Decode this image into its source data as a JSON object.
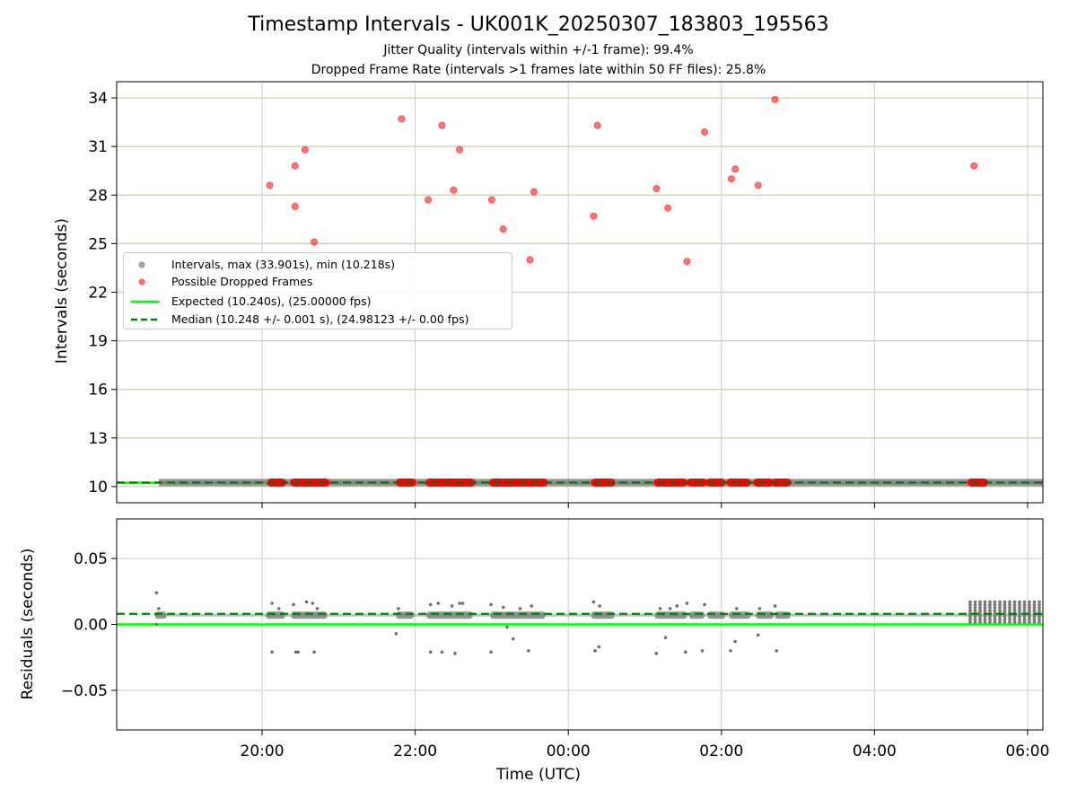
{
  "title": "Timestamp Intervals - UK001K_20250307_183803_195563",
  "subtitle_1": "Jitter Quality (intervals within +/-1 frame): 99.4%",
  "subtitle_2": "Dropped Frame Rate (intervals >1 frames late within 50 FF files): 25.8%",
  "colors": {
    "intervals": "#808080",
    "dropped": "#ff0000",
    "expected": "#00ff00",
    "median": "#008000",
    "hgrid_top": "#d8c8a0",
    "grid": "#cccccc"
  },
  "chart_data": [
    {
      "type": "scatter",
      "panel": "top",
      "ylabel": "Intervals (seconds)",
      "ylim": [
        9.0,
        35.0
      ],
      "yticks": [
        10,
        13,
        16,
        19,
        22,
        25,
        28,
        31,
        34
      ],
      "xlim": [
        18.1,
        30.2
      ],
      "xticks": [
        20,
        22,
        24,
        26,
        28,
        30
      ],
      "grid": "both",
      "legend_position": "center-left",
      "legend": [
        {
          "kind": "marker",
          "color": "#a0a0a0",
          "label": "Intervals, max (33.901s), min (10.218s)"
        },
        {
          "kind": "marker",
          "color": "#ff6b6b",
          "label": "Possible Dropped Frames"
        },
        {
          "kind": "solid",
          "color": "#00ff00",
          "label": "Expected (10.240s), (25.00000 fps)"
        },
        {
          "kind": "dashed",
          "color": "#008000",
          "label": "Median (10.248 +/- 0.001 s), (24.98123 +/- 0.00 fps)"
        }
      ],
      "interval_span": [
        18.65,
        30.2
      ],
      "interval_value": 10.25,
      "expected_value": 10.24,
      "median_value": 10.248,
      "dropped_points": [
        {
          "x": 20.1,
          "y": 28.6
        },
        {
          "x": 20.43,
          "y": 29.8
        },
        {
          "x": 20.43,
          "y": 27.3
        },
        {
          "x": 20.56,
          "y": 30.8
        },
        {
          "x": 20.68,
          "y": 25.1
        },
        {
          "x": 21.82,
          "y": 32.7
        },
        {
          "x": 22.17,
          "y": 27.7
        },
        {
          "x": 22.35,
          "y": 32.3
        },
        {
          "x": 22.5,
          "y": 28.3
        },
        {
          "x": 22.58,
          "y": 30.8
        },
        {
          "x": 23.0,
          "y": 27.7
        },
        {
          "x": 23.15,
          "y": 25.9
        },
        {
          "x": 23.5,
          "y": 24.0
        },
        {
          "x": 23.55,
          "y": 28.2
        },
        {
          "x": 24.33,
          "y": 26.7
        },
        {
          "x": 24.38,
          "y": 32.3
        },
        {
          "x": 25.15,
          "y": 28.4
        },
        {
          "x": 25.3,
          "y": 27.2
        },
        {
          "x": 25.55,
          "y": 23.9
        },
        {
          "x": 25.78,
          "y": 31.9
        },
        {
          "x": 26.13,
          "y": 29.0
        },
        {
          "x": 26.18,
          "y": 29.6
        },
        {
          "x": 26.48,
          "y": 28.6
        },
        {
          "x": 26.7,
          "y": 33.9
        },
        {
          "x": 29.3,
          "y": 29.8
        }
      ],
      "dropped_baseline_runs": [
        [
          20.1,
          20.28
        ],
        [
          20.4,
          20.85
        ],
        [
          21.78,
          21.98
        ],
        [
          22.17,
          22.75
        ],
        [
          23.0,
          23.7
        ],
        [
          24.33,
          24.58
        ],
        [
          25.15,
          25.52
        ],
        [
          25.58,
          25.78
        ],
        [
          25.83,
          26.02
        ],
        [
          26.1,
          26.35
        ],
        [
          26.45,
          26.65
        ],
        [
          26.68,
          26.88
        ],
        [
          29.25,
          29.45
        ]
      ]
    },
    {
      "type": "scatter",
      "panel": "bottom",
      "ylabel": "Residuals (seconds)",
      "xlabel": "Time (UTC)",
      "ylim": [
        -0.08,
        0.08
      ],
      "yticks": [
        0.05,
        0.0,
        -0.05
      ],
      "ytick_labels": [
        "0.05",
        "0.00",
        "−0.05"
      ],
      "xlim": [
        18.1,
        30.2
      ],
      "xticks": [
        20,
        22,
        24,
        26,
        28,
        30
      ],
      "xtick_labels": [
        "20:00",
        "22:00",
        "00:00",
        "02:00",
        "04:00",
        "06:00"
      ],
      "grid": "both",
      "expected_residual": 0.0,
      "median_residual": 0.008,
      "baseline_residual": 0.007,
      "outliers": [
        {
          "x": 18.62,
          "y": 0.024
        },
        {
          "x": 18.62,
          "y": 0.0
        },
        {
          "x": 18.65,
          "y": 0.012
        },
        {
          "x": 20.13,
          "y": 0.016
        },
        {
          "x": 20.13,
          "y": -0.021
        },
        {
          "x": 20.22,
          "y": 0.012
        },
        {
          "x": 20.41,
          "y": 0.015
        },
        {
          "x": 20.44,
          "y": -0.021
        },
        {
          "x": 20.47,
          "y": -0.021
        },
        {
          "x": 20.58,
          "y": 0.017
        },
        {
          "x": 20.66,
          "y": 0.016
        },
        {
          "x": 20.68,
          "y": -0.021
        },
        {
          "x": 20.72,
          "y": 0.012
        },
        {
          "x": 21.75,
          "y": -0.007
        },
        {
          "x": 21.78,
          "y": 0.012
        },
        {
          "x": 22.2,
          "y": 0.015
        },
        {
          "x": 22.2,
          "y": -0.021
        },
        {
          "x": 22.3,
          "y": 0.016
        },
        {
          "x": 22.35,
          "y": -0.021
        },
        {
          "x": 22.48,
          "y": 0.014
        },
        {
          "x": 22.52,
          "y": -0.022
        },
        {
          "x": 22.58,
          "y": 0.016
        },
        {
          "x": 22.62,
          "y": 0.016
        },
        {
          "x": 22.99,
          "y": 0.015
        },
        {
          "x": 22.99,
          "y": -0.021
        },
        {
          "x": 23.15,
          "y": 0.013
        },
        {
          "x": 23.2,
          "y": -0.002
        },
        {
          "x": 23.28,
          "y": -0.011
        },
        {
          "x": 23.37,
          "y": 0.012
        },
        {
          "x": 23.48,
          "y": -0.02
        },
        {
          "x": 23.52,
          "y": 0.014
        },
        {
          "x": 24.33,
          "y": 0.017
        },
        {
          "x": 24.35,
          "y": -0.02
        },
        {
          "x": 24.4,
          "y": -0.017
        },
        {
          "x": 24.41,
          "y": 0.014
        },
        {
          "x": 25.15,
          "y": -0.022
        },
        {
          "x": 25.2,
          "y": 0.012
        },
        {
          "x": 25.27,
          "y": -0.01
        },
        {
          "x": 25.33,
          "y": 0.012
        },
        {
          "x": 25.42,
          "y": 0.014
        },
        {
          "x": 25.53,
          "y": -0.021
        },
        {
          "x": 25.55,
          "y": 0.016
        },
        {
          "x": 25.75,
          "y": -0.02
        },
        {
          "x": 25.78,
          "y": 0.015
        },
        {
          "x": 26.12,
          "y": -0.02
        },
        {
          "x": 26.18,
          "y": -0.013
        },
        {
          "x": 26.2,
          "y": 0.012
        },
        {
          "x": 26.48,
          "y": -0.008
        },
        {
          "x": 26.5,
          "y": 0.012
        },
        {
          "x": 26.7,
          "y": 0.014
        },
        {
          "x": 26.72,
          "y": -0.02
        }
      ],
      "clusters": [
        [
          18.6,
          18.75
        ],
        [
          20.05,
          20.3
        ],
        [
          20.38,
          20.85
        ],
        [
          21.75,
          21.98
        ],
        [
          22.15,
          22.75
        ],
        [
          22.98,
          23.7
        ],
        [
          24.3,
          24.6
        ],
        [
          25.13,
          25.55
        ],
        [
          25.58,
          25.78
        ],
        [
          25.82,
          26.05
        ],
        [
          26.1,
          26.38
        ],
        [
          26.45,
          26.68
        ],
        [
          26.7,
          26.9
        ]
      ],
      "dense_span": [
        29.25,
        30.2
      ],
      "dense_range": [
        0.001,
        0.017
      ]
    }
  ]
}
